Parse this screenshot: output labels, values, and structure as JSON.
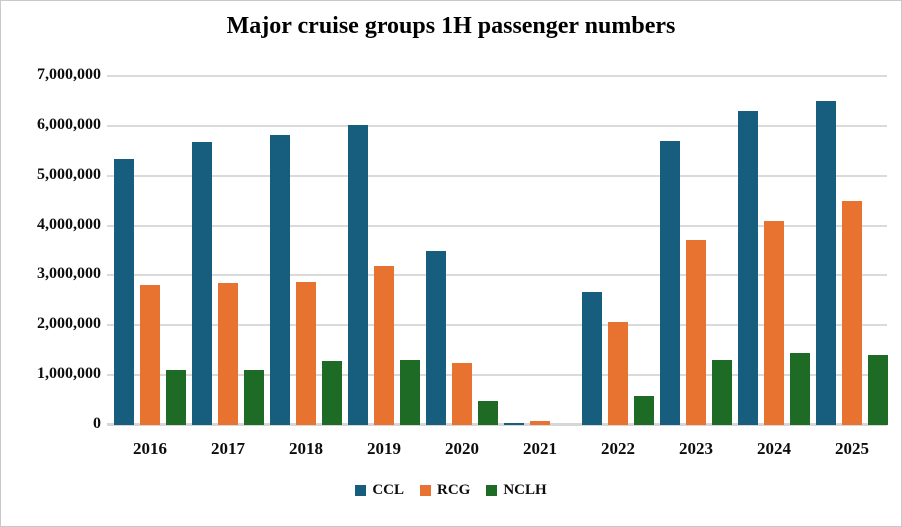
{
  "chart": {
    "background": "#ffffff",
    "border_color": "#c9c9c9",
    "gridline_color": "#dadada",
    "text_color": "#0d0d0d"
  },
  "chart_data": {
    "type": "bar",
    "title": "Major cruise groups 1H passenger numbers",
    "categories": [
      "2016",
      "2017",
      "2018",
      "2019",
      "2020",
      "2021",
      "2022",
      "2023",
      "2024",
      "2025"
    ],
    "series": [
      {
        "name": "CCL",
        "color": "#175d7d",
        "values": [
          5330000,
          5670000,
          5810000,
          6020000,
          3480000,
          50000,
          2670000,
          5700000,
          6290000,
          6490000
        ]
      },
      {
        "name": "RCG",
        "color": "#e8722f",
        "values": [
          2800000,
          2840000,
          2870000,
          3190000,
          1240000,
          90000,
          2070000,
          3710000,
          4090000,
          4500000
        ]
      },
      {
        "name": "NCLH",
        "color": "#1e6b26",
        "values": [
          1110000,
          1110000,
          1280000,
          1300000,
          490000,
          0,
          590000,
          1310000,
          1440000,
          1400000
        ]
      }
    ],
    "xlabel": "",
    "ylabel": "",
    "ylim": [
      0,
      7000000
    ],
    "y_tick_step": 1000000,
    "y_tick_labels": [
      "7,000,000",
      "6,000,000",
      "5,000,000",
      "4,000,000",
      "3,000,000",
      "2,000,000",
      "1,000,000",
      "0"
    ],
    "grid": "horizontal",
    "legend_position": "bottom",
    "legend_labels": [
      "CCL",
      "RCG",
      "NCLH"
    ]
  }
}
